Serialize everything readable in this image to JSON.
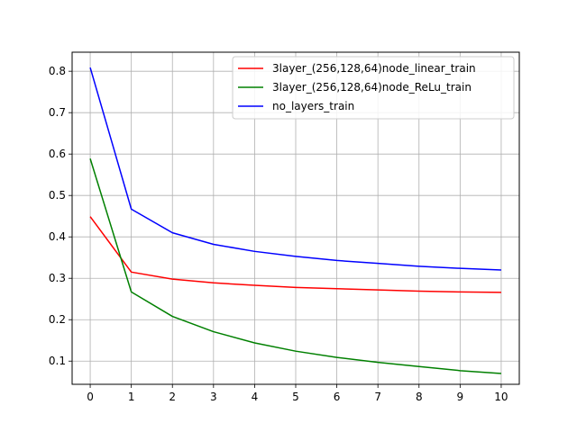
{
  "chart_data": {
    "type": "line",
    "title": "",
    "xlabel": "",
    "ylabel": "",
    "x": [
      0,
      1,
      2,
      3,
      4,
      5,
      6,
      7,
      8,
      9,
      10
    ],
    "xlim": [
      -0.44,
      10.44
    ],
    "ylim": [
      0.044,
      0.846
    ],
    "xticks": [
      "0",
      "1",
      "2",
      "3",
      "4",
      "5",
      "6",
      "7",
      "8",
      "9",
      "10"
    ],
    "yticks": [
      "0.1",
      "0.2",
      "0.3",
      "0.4",
      "0.5",
      "0.6",
      "0.7",
      "0.8"
    ],
    "grid": true,
    "legend_position": "upper right",
    "series": [
      {
        "name": "3layer_(256,128,64)node_linear_train",
        "color": "#ff0000",
        "values": [
          0.449,
          0.315,
          0.298,
          0.289,
          0.283,
          0.278,
          0.275,
          0.272,
          0.269,
          0.267,
          0.266
        ]
      },
      {
        "name": "3layer_(256,128,64)node_ReLu_train",
        "color": "#008000",
        "values": [
          0.589,
          0.267,
          0.208,
          0.171,
          0.144,
          0.124,
          0.109,
          0.097,
          0.087,
          0.077,
          0.07
        ]
      },
      {
        "name": "no_layers_train",
        "color": "#0000ff",
        "values": [
          0.809,
          0.467,
          0.41,
          0.382,
          0.365,
          0.353,
          0.343,
          0.336,
          0.329,
          0.324,
          0.32
        ]
      }
    ]
  }
}
